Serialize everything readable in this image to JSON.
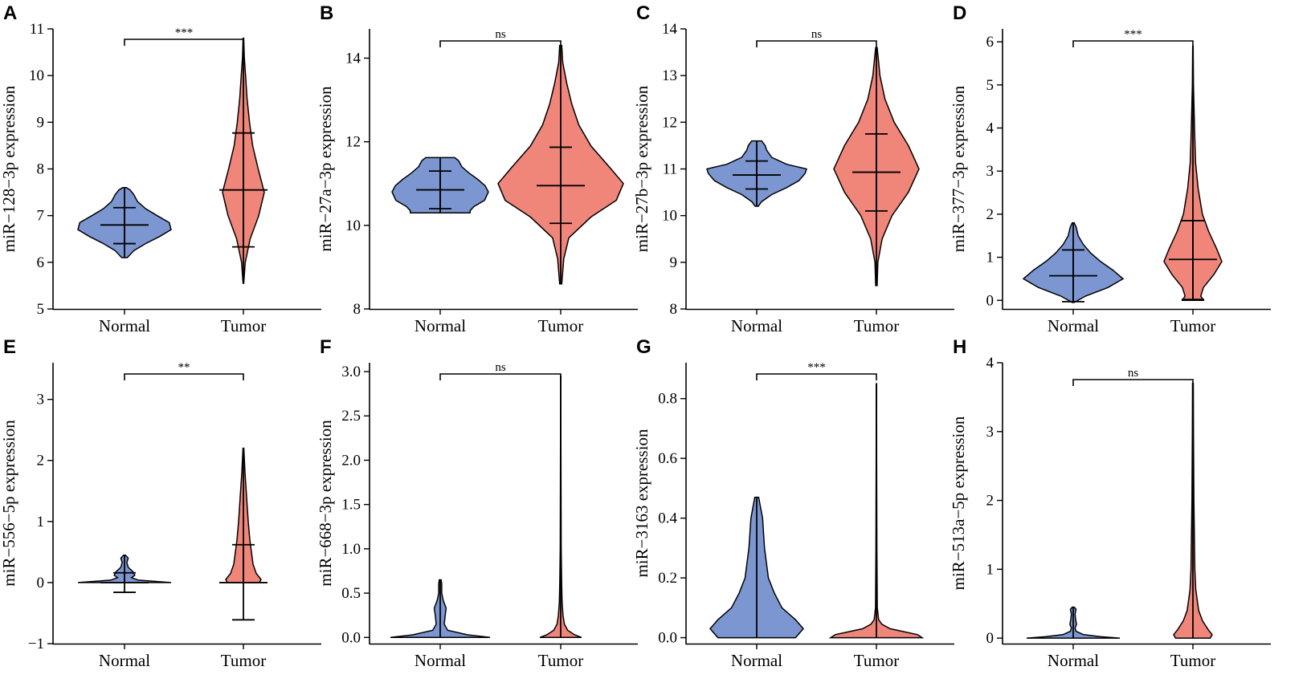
{
  "chart_data": [
    {
      "type": "violin",
      "panel": "A",
      "ylabel": "miR−128−3p expression",
      "categories": [
        "Normal",
        "Tumor"
      ],
      "ylim": [
        5,
        11
      ],
      "yticks": [
        5,
        6,
        7,
        8,
        9,
        10,
        11
      ],
      "colors": [
        "#7c96d1",
        "#f0857a"
      ],
      "significance": "***",
      "series": [
        {
          "name": "Normal",
          "min": 6.1,
          "max": 7.6,
          "mean": 6.8,
          "sd_low": 6.4,
          "sd_high": 7.17,
          "profile": [
            [
              6.1,
              0.06
            ],
            [
              6.25,
              0.2
            ],
            [
              6.4,
              0.45
            ],
            [
              6.55,
              0.75
            ],
            [
              6.7,
              1.0
            ],
            [
              6.85,
              0.96
            ],
            [
              7.0,
              0.7
            ],
            [
              7.15,
              0.45
            ],
            [
              7.3,
              0.28
            ],
            [
              7.45,
              0.2
            ],
            [
              7.55,
              0.12
            ],
            [
              7.6,
              0.04
            ]
          ]
        },
        {
          "name": "Tumor",
          "min": 5.55,
          "max": 10.8,
          "mean": 7.55,
          "sd_low": 6.33,
          "sd_high": 8.77,
          "profile": [
            [
              5.55,
              0.01
            ],
            [
              6.0,
              0.06
            ],
            [
              6.5,
              0.22
            ],
            [
              7.0,
              0.5
            ],
            [
              7.5,
              0.68
            ],
            [
              8.0,
              0.48
            ],
            [
              8.5,
              0.3
            ],
            [
              9.0,
              0.2
            ],
            [
              9.5,
              0.12
            ],
            [
              10.0,
              0.07
            ],
            [
              10.4,
              0.03
            ],
            [
              10.8,
              0.01
            ]
          ]
        }
      ]
    },
    {
      "type": "violin",
      "panel": "B",
      "ylabel": "miR−27a−3p expression",
      "categories": [
        "Normal",
        "Tumor"
      ],
      "ylim": [
        8,
        14.7
      ],
      "yticks": [
        8,
        10,
        12,
        14
      ],
      "colors": [
        "#7c96d1",
        "#f0857a"
      ],
      "significance": "ns",
      "series": [
        {
          "name": "Normal",
          "min": 10.3,
          "max": 11.62,
          "mean": 10.85,
          "sd_low": 10.4,
          "sd_high": 11.3,
          "profile": [
            [
              10.3,
              0.62
            ],
            [
              10.35,
              0.62
            ],
            [
              10.45,
              0.7
            ],
            [
              10.6,
              0.92
            ],
            [
              10.8,
              1.0
            ],
            [
              10.95,
              0.93
            ],
            [
              11.1,
              0.78
            ],
            [
              11.25,
              0.6
            ],
            [
              11.4,
              0.45
            ],
            [
              11.55,
              0.38
            ],
            [
              11.62,
              0.3
            ]
          ]
        },
        {
          "name": "Tumor",
          "min": 8.6,
          "max": 14.3,
          "mean": 10.95,
          "sd_low": 10.05,
          "sd_high": 11.87,
          "profile": [
            [
              8.6,
              0.01
            ],
            [
              9.2,
              0.03
            ],
            [
              9.7,
              0.08
            ],
            [
              10.2,
              0.3
            ],
            [
              10.6,
              0.55
            ],
            [
              11.0,
              0.62
            ],
            [
              11.4,
              0.48
            ],
            [
              11.9,
              0.3
            ],
            [
              12.4,
              0.18
            ],
            [
              12.9,
              0.11
            ],
            [
              13.4,
              0.06
            ],
            [
              13.9,
              0.02
            ],
            [
              14.3,
              0.01
            ]
          ]
        }
      ]
    },
    {
      "type": "violin",
      "panel": "C",
      "ylabel": "miR−27b−3p expression",
      "categories": [
        "Normal",
        "Tumor"
      ],
      "ylim": [
        8,
        14
      ],
      "yticks": [
        8,
        9,
        10,
        11,
        12,
        13,
        14
      ],
      "colors": [
        "#7c96d1",
        "#f0857a"
      ],
      "significance": "ns",
      "series": [
        {
          "name": "Normal",
          "min": 10.2,
          "max": 11.6,
          "mean": 10.87,
          "sd_low": 10.57,
          "sd_high": 11.17,
          "profile": [
            [
              10.2,
              0.03
            ],
            [
              10.3,
              0.1
            ],
            [
              10.45,
              0.3
            ],
            [
              10.6,
              0.6
            ],
            [
              10.75,
              0.85
            ],
            [
              10.9,
              0.97
            ],
            [
              11.0,
              1.0
            ],
            [
              11.1,
              0.6
            ],
            [
              11.25,
              0.3
            ],
            [
              11.4,
              0.2
            ],
            [
              11.5,
              0.17
            ],
            [
              11.6,
              0.1
            ]
          ]
        },
        {
          "name": "Tumor",
          "min": 8.5,
          "max": 13.6,
          "mean": 10.93,
          "sd_low": 10.1,
          "sd_high": 11.75,
          "profile": [
            [
              8.5,
              0.01
            ],
            [
              9.0,
              0.02
            ],
            [
              9.5,
              0.08
            ],
            [
              10.0,
              0.22
            ],
            [
              10.5,
              0.45
            ],
            [
              11.0,
              0.6
            ],
            [
              11.5,
              0.45
            ],
            [
              12.0,
              0.25
            ],
            [
              12.5,
              0.12
            ],
            [
              13.0,
              0.05
            ],
            [
              13.3,
              0.03
            ],
            [
              13.6,
              0.01
            ]
          ]
        }
      ]
    },
    {
      "type": "violin",
      "panel": "D",
      "ylabel": "miR−377−3p expression",
      "categories": [
        "Normal",
        "Tumor"
      ],
      "ylim": [
        -0.2,
        6.3
      ],
      "yticks": [
        0,
        1,
        2,
        3,
        4,
        5,
        6
      ],
      "colors": [
        "#7c96d1",
        "#f0857a"
      ],
      "significance": "***",
      "series": [
        {
          "name": "Normal",
          "min": -0.05,
          "max": 1.8,
          "mean": 0.57,
          "sd_low": -0.03,
          "sd_high": 1.17,
          "profile": [
            [
              -0.05,
              0.02
            ],
            [
              0.1,
              0.25
            ],
            [
              0.3,
              0.7
            ],
            [
              0.5,
              1.0
            ],
            [
              0.7,
              0.8
            ],
            [
              0.9,
              0.55
            ],
            [
              1.1,
              0.35
            ],
            [
              1.3,
              0.2
            ],
            [
              1.5,
              0.1
            ],
            [
              1.7,
              0.06
            ],
            [
              1.8,
              0.02
            ]
          ]
        },
        {
          "name": "Tumor",
          "min": 0.0,
          "max": 5.9,
          "mean": 0.95,
          "sd_low": 0.02,
          "sd_high": 1.85,
          "profile": [
            [
              0.0,
              0.2
            ],
            [
              0.1,
              0.15
            ],
            [
              0.3,
              0.2
            ],
            [
              0.6,
              0.4
            ],
            [
              0.9,
              0.55
            ],
            [
              1.2,
              0.45
            ],
            [
              1.6,
              0.3
            ],
            [
              2.0,
              0.18
            ],
            [
              2.6,
              0.1
            ],
            [
              3.2,
              0.05
            ],
            [
              4.0,
              0.03
            ],
            [
              5.0,
              0.01
            ],
            [
              5.9,
              0.005
            ]
          ]
        }
      ]
    },
    {
      "type": "violin",
      "panel": "E",
      "ylabel": "miR−556−5p expression",
      "categories": [
        "Normal",
        "Tumor"
      ],
      "ylim": [
        -1,
        3.6
      ],
      "yticks": [
        -1,
        0,
        1,
        2,
        3
      ],
      "colors": [
        "#7c96d1",
        "#f0857a"
      ],
      "significance": "**",
      "series": [
        {
          "name": "Normal",
          "min": 0.0,
          "max": 0.45,
          "mean": 0.0,
          "sd_low": -0.16,
          "sd_high": 0.16,
          "profile": [
            [
              0.0,
              1.0
            ],
            [
              0.04,
              0.3
            ],
            [
              0.08,
              0.15
            ],
            [
              0.12,
              0.22
            ],
            [
              0.18,
              0.18
            ],
            [
              0.25,
              0.08
            ],
            [
              0.33,
              0.05
            ],
            [
              0.4,
              0.08
            ],
            [
              0.45,
              0.02
            ]
          ]
        },
        {
          "name": "Tumor",
          "min": 0.0,
          "max": 2.2,
          "mean": 0.0,
          "sd_low": -0.61,
          "sd_high": 0.62,
          "profile": [
            [
              0.0,
              0.2
            ],
            [
              0.05,
              0.22
            ],
            [
              0.15,
              0.16
            ],
            [
              0.3,
              0.12
            ],
            [
              0.5,
              0.1
            ],
            [
              0.7,
              0.08
            ],
            [
              1.0,
              0.06
            ],
            [
              1.4,
              0.04
            ],
            [
              1.8,
              0.02
            ],
            [
              2.2,
              0.005
            ]
          ]
        }
      ]
    },
    {
      "type": "violin",
      "panel": "F",
      "ylabel": "miR−668−3p expression",
      "categories": [
        "Normal",
        "Tumor"
      ],
      "ylim": [
        -0.07,
        3.1
      ],
      "yticks": [
        0.0,
        0.5,
        1.0,
        1.5,
        2.0,
        2.5,
        3.0
      ],
      "colors": [
        "#7c96d1",
        "#f0857a"
      ],
      "significance": "ns",
      "series": [
        {
          "name": "Normal",
          "min": 0.0,
          "max": 0.65,
          "mean": null,
          "sd_low": null,
          "sd_high": null,
          "profile": [
            [
              0.0,
              1.0
            ],
            [
              0.03,
              0.55
            ],
            [
              0.08,
              0.15
            ],
            [
              0.15,
              0.08
            ],
            [
              0.25,
              0.1
            ],
            [
              0.33,
              0.12
            ],
            [
              0.42,
              0.06
            ],
            [
              0.5,
              0.03
            ],
            [
              0.6,
              0.03
            ],
            [
              0.65,
              0.02
            ]
          ]
        },
        {
          "name": "Tumor",
          "min": 0.0,
          "max": 2.95,
          "mean": null,
          "sd_low": null,
          "sd_high": null,
          "profile": [
            [
              0.0,
              0.9
            ],
            [
              0.03,
              0.6
            ],
            [
              0.08,
              0.3
            ],
            [
              0.15,
              0.16
            ],
            [
              0.25,
              0.1
            ],
            [
              0.4,
              0.06
            ],
            [
              0.6,
              0.04
            ],
            [
              1.0,
              0.02
            ],
            [
              2.0,
              0.01
            ],
            [
              2.95,
              0.005
            ]
          ]
        }
      ]
    },
    {
      "type": "violin",
      "panel": "G",
      "ylabel": "miR−3163 expression",
      "categories": [
        "Normal",
        "Tumor"
      ],
      "ylim": [
        -0.02,
        0.92
      ],
      "yticks": [
        0.0,
        0.2,
        0.4,
        0.6,
        0.8
      ],
      "colors": [
        "#7c96d1",
        "#f0857a"
      ],
      "significance": "***",
      "series": [
        {
          "name": "Normal",
          "min": 0.0,
          "max": 0.47,
          "mean": null,
          "sd_low": null,
          "sd_high": null,
          "profile": [
            [
              0.0,
              0.2
            ],
            [
              0.03,
              0.24
            ],
            [
              0.06,
              0.2
            ],
            [
              0.1,
              0.13
            ],
            [
              0.15,
              0.09
            ],
            [
              0.2,
              0.06
            ],
            [
              0.3,
              0.04
            ],
            [
              0.4,
              0.03
            ],
            [
              0.47,
              0.01
            ]
          ]
        },
        {
          "name": "Tumor",
          "min": 0.0,
          "max": 0.85,
          "mean": null,
          "sd_low": null,
          "sd_high": null,
          "profile": [
            [
              0.0,
              1.0
            ],
            [
              0.01,
              0.9
            ],
            [
              0.02,
              0.6
            ],
            [
              0.03,
              0.3
            ],
            [
              0.045,
              0.12
            ],
            [
              0.06,
              0.05
            ],
            [
              0.1,
              0.02
            ],
            [
              0.3,
              0.01
            ],
            [
              0.6,
              0.006
            ],
            [
              0.85,
              0.004
            ]
          ]
        }
      ]
    },
    {
      "type": "violin",
      "panel": "H",
      "ylabel": "miR−513a−5p expression",
      "categories": [
        "Normal",
        "Tumor"
      ],
      "ylim": [
        -0.08,
        4.0
      ],
      "yticks": [
        0,
        1,
        2,
        3,
        4
      ],
      "colors": [
        "#7c96d1",
        "#f0857a"
      ],
      "significance": "ns",
      "series": [
        {
          "name": "Normal",
          "min": 0.0,
          "max": 0.45,
          "mean": null,
          "sd_low": null,
          "sd_high": null,
          "profile": [
            [
              0.0,
              1.0
            ],
            [
              0.02,
              0.6
            ],
            [
              0.05,
              0.22
            ],
            [
              0.1,
              0.06
            ],
            [
              0.15,
              0.04
            ],
            [
              0.2,
              0.07
            ],
            [
              0.28,
              0.05
            ],
            [
              0.35,
              0.04
            ],
            [
              0.42,
              0.06
            ],
            [
              0.45,
              0.02
            ]
          ]
        },
        {
          "name": "Tumor",
          "min": 0.0,
          "max": 3.7,
          "mean": null,
          "sd_low": null,
          "sd_high": null,
          "profile": [
            [
              0.0,
              0.18
            ],
            [
              0.05,
              0.2
            ],
            [
              0.12,
              0.16
            ],
            [
              0.25,
              0.1
            ],
            [
              0.4,
              0.06
            ],
            [
              0.7,
              0.03
            ],
            [
              1.0,
              0.02
            ],
            [
              2.0,
              0.01
            ],
            [
              3.0,
              0.006
            ],
            [
              3.7,
              0.004
            ]
          ]
        }
      ]
    }
  ]
}
